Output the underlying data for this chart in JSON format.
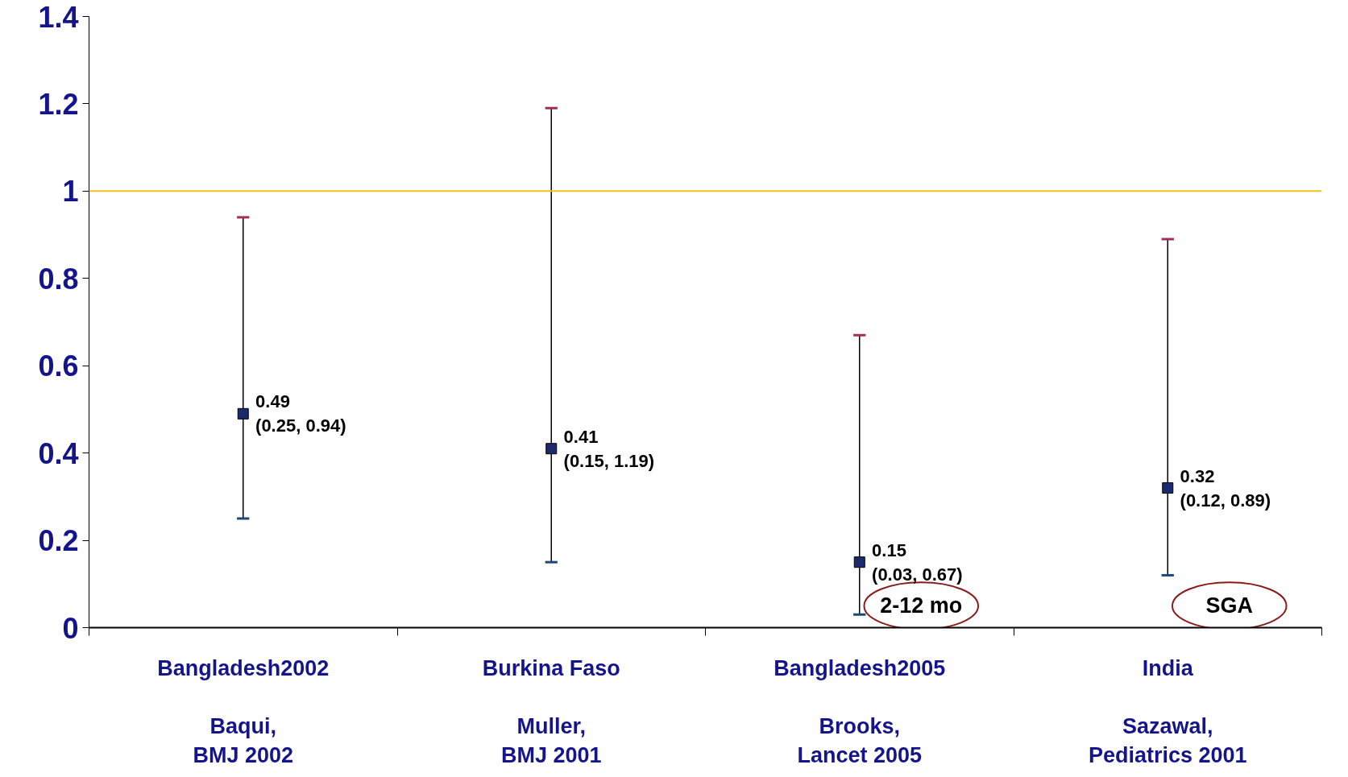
{
  "chart_data": {
    "type": "scatter",
    "categories": [
      "Bangladesh2002\n\nBaqui,\nBMJ 2002",
      "Burkina Faso\n\nMuller,\nBMJ 2001",
      "Bangladesh2005\n\nBrooks,\nLancet 2005",
      "India\n\nSazawal,\nPediatrics 2001"
    ],
    "series": [
      {
        "color": "#1a2a6c",
        "values": [
          0.49,
          0.41,
          0.15,
          0.32
        ],
        "errors": [
          [
            0.25,
            0.94
          ],
          [
            0.15,
            1.19
          ],
          [
            0.03,
            0.67
          ],
          [
            0.12,
            0.89
          ]
        ],
        "value_labels": [
          "0.49\n(0.25, 0.94)",
          "0.41\n(0.15, 1.19)",
          "0.15\n(0.03, 0.67)",
          "0.32\n(0.12, 0.89)"
        ]
      }
    ],
    "marker": "square",
    "grid": false,
    "ylim": [
      0,
      1.4
    ],
    "yticks": [
      0,
      0.2,
      0.4,
      0.6,
      0.8,
      1,
      1.2,
      1.4
    ],
    "ref_lines": [
      {
        "axis": "y",
        "value": 1,
        "color": "#f0c419"
      }
    ],
    "annotations": [
      "2-12 mo",
      "SGA"
    ]
  }
}
